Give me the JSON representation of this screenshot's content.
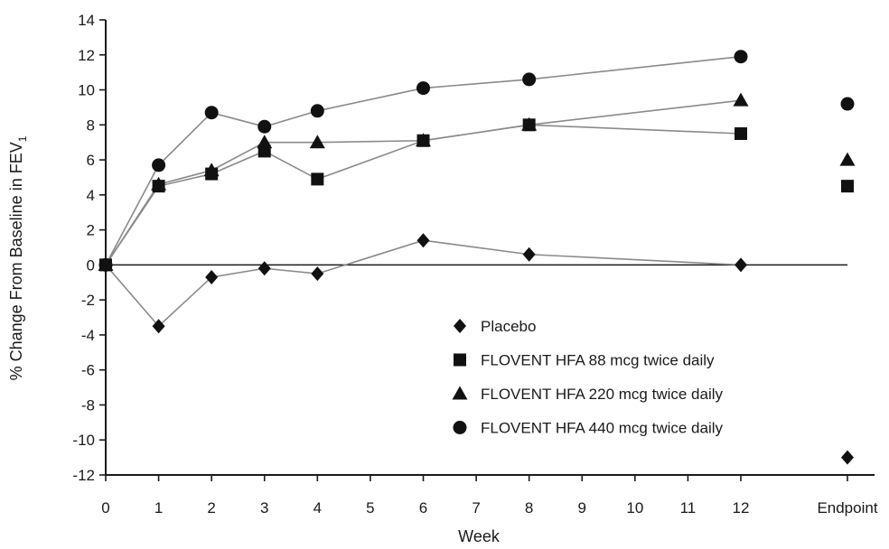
{
  "chart_data": {
    "type": "line",
    "xlabel": "Week",
    "ylabel_main": "% Change From Baseline in FEV",
    "ylabel_sub": "1",
    "x": [
      0,
      1,
      2,
      3,
      4,
      6,
      8,
      12
    ],
    "x_ticks": [
      "0",
      "1",
      "2",
      "3",
      "4",
      "5",
      "6",
      "7",
      "8",
      "9",
      "10",
      "11",
      "12"
    ],
    "x_tick_values": [
      0,
      1,
      2,
      3,
      4,
      5,
      6,
      7,
      8,
      9,
      10,
      11,
      12
    ],
    "endpoint_label": "Endpoint",
    "xlim": [
      0,
      12
    ],
    "ylim": [
      -12,
      14
    ],
    "y_ticks": [
      "-12",
      "-10",
      "-8",
      "-6",
      "-4",
      "-2",
      "0",
      "2",
      "4",
      "6",
      "8",
      "10",
      "12",
      "14"
    ],
    "y_tick_values": [
      -12,
      -10,
      -8,
      -6,
      -4,
      -2,
      0,
      2,
      4,
      6,
      8,
      10,
      12,
      14
    ],
    "grid": false,
    "legend_position": "bottom-center",
    "series": [
      {
        "name": "Placebo",
        "marker": "diamond",
        "values": [
          0,
          -3.5,
          -0.7,
          -0.2,
          -0.5,
          1.4,
          0.6,
          0
        ],
        "endpoint": -11
      },
      {
        "name": "FLOVENT HFA 88 mcg twice daily",
        "marker": "square",
        "values": [
          0,
          4.5,
          5.2,
          6.5,
          4.9,
          7.1,
          8.0,
          7.5
        ],
        "endpoint": 4.5
      },
      {
        "name": "FLOVENT HFA 220 mcg twice daily",
        "marker": "triangle",
        "values": [
          0,
          4.6,
          5.4,
          7.0,
          7.0,
          7.1,
          8.0,
          9.4
        ],
        "endpoint": 6.0
      },
      {
        "name": "FLOVENT HFA 440 mcg twice daily",
        "marker": "circle",
        "values": [
          0,
          5.7,
          8.7,
          7.9,
          8.8,
          10.1,
          10.6,
          11.9
        ],
        "endpoint": 9.2
      }
    ]
  }
}
